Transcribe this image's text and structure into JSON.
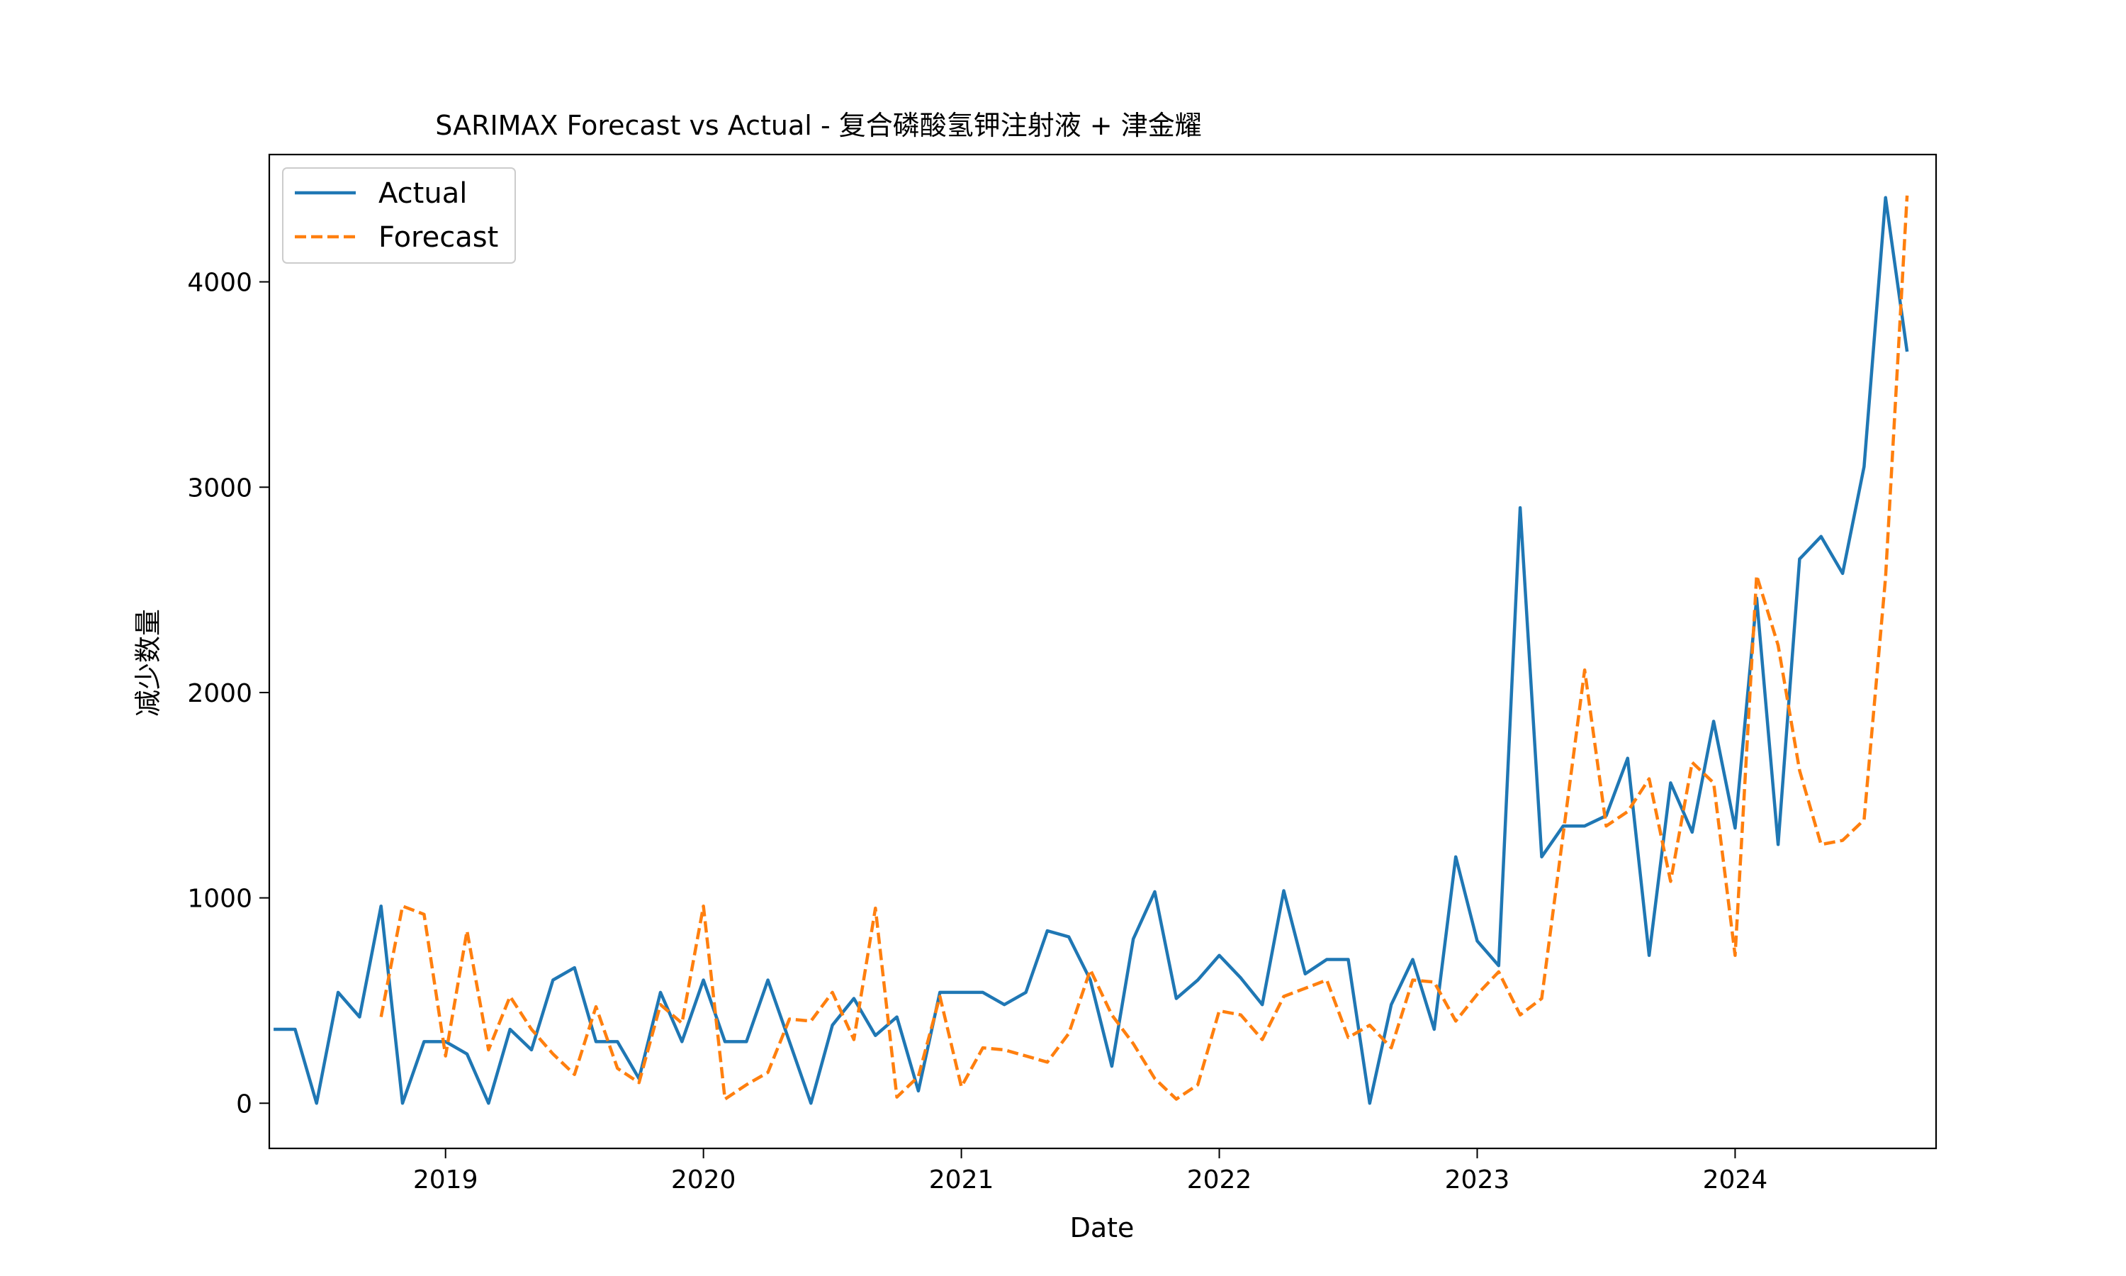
{
  "chart_data": {
    "type": "line",
    "title": "SARIMAX Forecast vs Actual - 复合磷酸氢钾注射液 + 津金耀",
    "xlabel": "Date",
    "ylabel": "减少数量",
    "ylim": [
      -220,
      4620
    ],
    "x_ticks": [
      "2019",
      "2020",
      "2021",
      "2022",
      "2023",
      "2024"
    ],
    "y_ticks": [
      0,
      1000,
      2000,
      3000,
      4000
    ],
    "grid": false,
    "legend_position": "top-left",
    "series": [
      {
        "name": "Actual",
        "color": "#1f77b4",
        "line_style": "solid",
        "start": "2018-05",
        "values": [
          360,
          360,
          0,
          540,
          420,
          960,
          0,
          300,
          300,
          240,
          0,
          360,
          260,
          600,
          660,
          300,
          300,
          120,
          540,
          300,
          600,
          300,
          300,
          600,
          300,
          0,
          380,
          510,
          330,
          420,
          60,
          540,
          540,
          540,
          480,
          540,
          840,
          810,
          600,
          180,
          800,
          1030,
          510,
          600,
          720,
          610,
          480,
          1035,
          630,
          700,
          700,
          0,
          480,
          700,
          360,
          1200,
          790,
          670,
          2900,
          1200,
          1350,
          1350,
          1400,
          1680,
          720,
          1560,
          1320,
          1860,
          1340,
          2460,
          1260,
          2650,
          2760,
          2580,
          3100,
          4410,
          3660
        ]
      },
      {
        "name": "Forecast",
        "color": "#ff7f0e",
        "line_style": "dashed",
        "start": "2018-10",
        "values": [
          420,
          960,
          920,
          230,
          840,
          260,
          520,
          360,
          240,
          140,
          470,
          170,
          100,
          480,
          390,
          960,
          20,
          90,
          150,
          410,
          400,
          540,
          310,
          950,
          30,
          130,
          520,
          80,
          270,
          260,
          230,
          200,
          340,
          650,
          430,
          290,
          120,
          20,
          90,
          450,
          430,
          310,
          520,
          560,
          600,
          320,
          380,
          270,
          600,
          590,
          400,
          530,
          640,
          430,
          510,
          1310,
          2110,
          1350,
          1420,
          1580,
          1080,
          1660,
          1560,
          720,
          2570,
          2230,
          1620,
          1260,
          1280,
          1380,
          2560,
          4420
        ]
      }
    ]
  }
}
